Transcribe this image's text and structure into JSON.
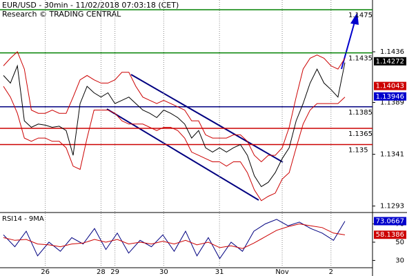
{
  "header": {
    "title": "EUR/USD - 30min - 11/02/2018 07:03:18 (CET)",
    "source": "Research © TRADING CENTRAL"
  },
  "chart_data": [
    {
      "type": "line",
      "ylim": [
        1.1287,
        1.1484
      ],
      "yticks": [
        1.1436,
        1.1389,
        1.1341,
        1.1293
      ],
      "x_ticks": [
        {
          "index": 6,
          "label": "26"
        },
        {
          "index": 14,
          "label": "28"
        },
        {
          "index": 16,
          "label": "29"
        },
        {
          "index": 23,
          "label": "30"
        },
        {
          "index": 31,
          "label": "31"
        },
        {
          "index": 40,
          "label": "Nov"
        },
        {
          "index": 47,
          "label": "2"
        }
      ],
      "series": [
        {
          "color": "#000000",
          "values": [
            1.1414,
            1.1407,
            1.1423,
            1.1372,
            1.1366,
            1.1369,
            1.1368,
            1.1366,
            1.1367,
            1.1363,
            1.134,
            1.1388,
            1.1404,
            1.1398,
            1.1394,
            1.1398,
            1.1388,
            1.1391,
            1.1394,
            1.1388,
            1.1382,
            1.1379,
            1.1375,
            1.1382,
            1.1379,
            1.1375,
            1.1369,
            1.1356,
            1.1363,
            1.1347,
            1.1343,
            1.1347,
            1.1343,
            1.1347,
            1.135,
            1.134,
            1.1321,
            1.1311,
            1.1315,
            1.1324,
            1.1337,
            1.1347,
            1.1372,
            1.1388,
            1.1407,
            1.142,
            1.1407,
            1.1401,
            1.1394,
            1.1426
          ]
        },
        {
          "color": "#cc0000",
          "values": [
            1.1423,
            1.143,
            1.1436,
            1.142,
            1.1382,
            1.1379,
            1.1379,
            1.1382,
            1.1379,
            1.1379,
            1.1394,
            1.141,
            1.1414,
            1.141,
            1.1407,
            1.1407,
            1.141,
            1.1417,
            1.1417,
            1.1404,
            1.1394,
            1.1391,
            1.1388,
            1.1391,
            1.1388,
            1.1385,
            1.1382,
            1.1372,
            1.1372,
            1.1359,
            1.1356,
            1.1356,
            1.1356,
            1.1359,
            1.1359,
            1.1353,
            1.134,
            1.1334,
            1.134,
            1.134,
            1.1347,
            1.1366,
            1.1394,
            1.142,
            1.143,
            1.1433,
            1.143,
            1.1423,
            1.142,
            1.143
          ]
        },
        {
          "color": "#cc0000",
          "values": [
            1.1404,
            1.1394,
            1.1379,
            1.1356,
            1.1353,
            1.1356,
            1.1356,
            1.1353,
            1.1353,
            1.1347,
            1.133,
            1.1327,
            1.1356,
            1.1382,
            1.1382,
            1.1382,
            1.1379,
            1.1372,
            1.1369,
            1.1369,
            1.1369,
            1.1366,
            1.1363,
            1.1366,
            1.1366,
            1.1363,
            1.1356,
            1.1343,
            1.134,
            1.1337,
            1.1334,
            1.1334,
            1.133,
            1.1334,
            1.1334,
            1.1324,
            1.1308,
            1.1298,
            1.1302,
            1.1305,
            1.1318,
            1.1324,
            1.1347,
            1.1369,
            1.1382,
            1.1388,
            1.1388,
            1.1388,
            1.1388,
            1.1394
          ]
        }
      ],
      "levels": [
        {
          "value": 1.1475,
          "color": "#008000"
        },
        {
          "value": 1.1435,
          "color": "#008000"
        },
        {
          "value": 1.1385,
          "color": "#000080"
        },
        {
          "value": 1.1365,
          "color": "#cc0000"
        },
        {
          "value": 1.135,
          "color": "#cc0000"
        }
      ],
      "markers": [
        {
          "value": 1.14272,
          "color": "#000000"
        },
        {
          "value": 1.14043,
          "color": "#cc0000"
        },
        {
          "value": 1.13946,
          "color": "#0000cc"
        }
      ]
    },
    {
      "type": "line",
      "title": "RSI14 - 9MA",
      "ylim": [
        22,
        81
      ],
      "yticks": [
        70,
        50,
        30
      ],
      "series": [
        {
          "color": "#000080",
          "values": [
            58,
            45,
            62,
            35,
            50,
            40,
            55,
            48,
            65,
            42,
            60,
            38,
            52,
            45,
            58,
            40,
            62,
            35,
            55,
            32,
            50,
            40,
            62,
            70,
            75,
            68,
            72,
            65,
            60,
            52,
            73
          ]
        },
        {
          "color": "#cc0000",
          "values": [
            55,
            52,
            53,
            48,
            47,
            45,
            48,
            49,
            53,
            50,
            53,
            48,
            50,
            48,
            51,
            48,
            52,
            47,
            50,
            44,
            46,
            43,
            49,
            56,
            63,
            67,
            70,
            68,
            66,
            60,
            58
          ]
        }
      ],
      "markers": [
        {
          "value": 73.0667,
          "color": "#0000cc"
        },
        {
          "value": 58.1386,
          "color": "#cc0000"
        }
      ]
    }
  ]
}
